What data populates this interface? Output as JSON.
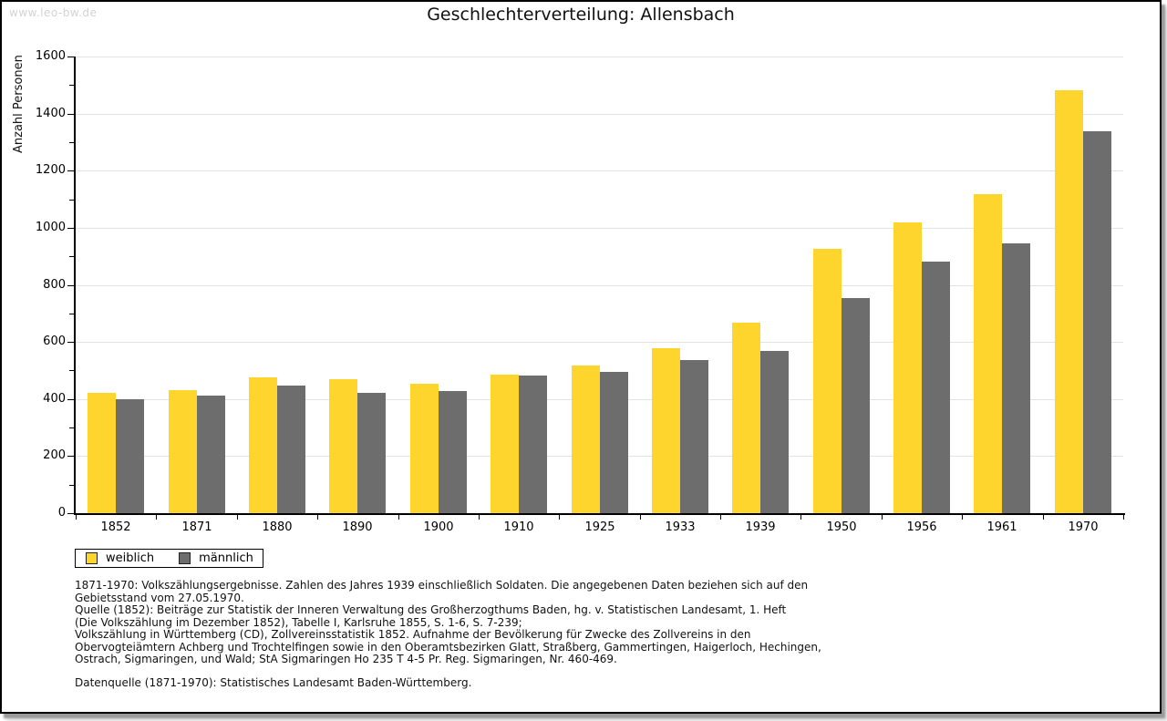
{
  "watermark": "www.leo-bw.de",
  "title": "Geschlechterverteilung: Allensbach",
  "chart_data": {
    "type": "bar",
    "title": "Geschlechterverteilung: Allensbach",
    "xlabel": "",
    "ylabel": "Anzahl Personen",
    "ylim": [
      0,
      1600
    ],
    "ytick_step": 200,
    "yminor_step": 100,
    "grid": "horizontal",
    "legend_position": "bottom-left",
    "categories": [
      "1852",
      "1871",
      "1880",
      "1890",
      "1900",
      "1910",
      "1925",
      "1933",
      "1939",
      "1950",
      "1956",
      "1961",
      "1970"
    ],
    "series": [
      {
        "name": "weiblich",
        "color": "#fdd52d",
        "values": [
          422,
          432,
          476,
          470,
          452,
          485,
          517,
          577,
          666,
          926,
          1020,
          1117,
          1483
        ]
      },
      {
        "name": "männlich",
        "color": "#6d6d6d",
        "values": [
          398,
          412,
          448,
          422,
          428,
          482,
          496,
          537,
          569,
          754,
          881,
          945,
          1337
        ]
      }
    ]
  },
  "legend": {
    "items": [
      {
        "label": "weiblich",
        "color": "#fdd52d"
      },
      {
        "label": "männlich",
        "color": "#6d6d6d"
      }
    ]
  },
  "footnotes": {
    "lines": [
      "1871-1970: Volkszählungsergebnisse. Zahlen des Jahres 1939 einschließlich Soldaten. Die angegebenen Daten beziehen sich auf den",
      "Gebietsstand vom 27.05.1970.",
      "Quelle (1852): Beiträge zur Statistik der Inneren Verwaltung des Großherzogthums Baden, hg. v. Statistischen Landesamt, 1. Heft",
      "(Die Volkszählung im Dezember 1852), Tabelle I, Karlsruhe 1855, S. 1-6, S. 7-239;",
      "Volkszählung in Württemberg (CD), Zollvereinsstatistik 1852. Aufnahme der Bevölkerung für Zwecke des Zollvereins in den",
      "Obervogteiämtern Achberg und Trochtelfingen sowie in den Oberamtsbezirken Glatt, Straßberg, Gammertingen, Haigerloch, Hechingen,",
      "Ostrach, Sigmaringen, und Wald; StA Sigmaringen Ho 235 T 4-5 Pr. Reg. Sigmaringen, Nr. 460-469."
    ],
    "source": "Datenquelle (1871-1970): Statistisches Landesamt Baden-Württemberg."
  },
  "colors": {
    "female_bar": "#fdd52d",
    "male_bar": "#6d6d6d",
    "gridline": "#e3e3e3",
    "axis": "#000000",
    "watermark": "#d3d3d3"
  }
}
